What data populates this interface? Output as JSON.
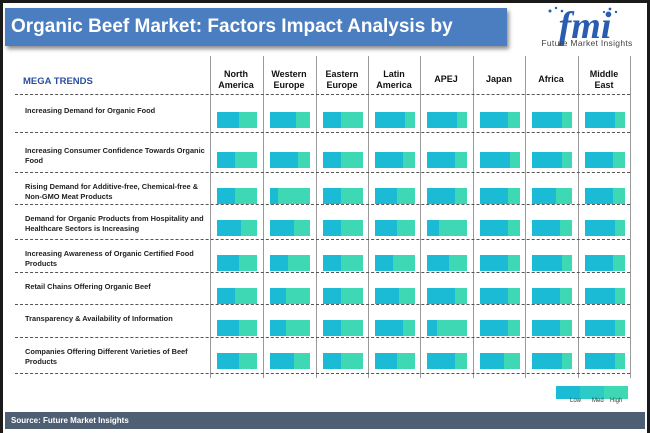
{
  "title": "Organic Beef Market: Factors Impact Analysis by Region",
  "logo": {
    "letters": "fmi",
    "name": "Future Market Insights"
  },
  "table": {
    "header_label": "MEGA TRENDS",
    "regions": [
      "North America",
      "Western Europe",
      "Eastern Europe",
      "Latin America",
      "APEJ",
      "Japan",
      "Africa",
      "Middle East"
    ]
  },
  "legend": {
    "low": "Low",
    "med": "Med",
    "high": "High"
  },
  "source": "Source: Future Market Insights",
  "colors": {
    "low": "#1bbbd6",
    "high": "#3ed9b4",
    "title_bg": "#4a7ec0",
    "source_bg": "#4f5f73"
  },
  "chart_data": {
    "type": "table",
    "title": "Organic Beef Market: Factors Impact Analysis by Region",
    "scale": [
      "Low",
      "Med",
      "High"
    ],
    "columns": [
      "North America",
      "Western Europe",
      "Eastern Europe",
      "Latin America",
      "APEJ",
      "Japan",
      "Africa",
      "Middle East"
    ],
    "rows": [
      {
        "trend": "Increasing Demand for Organic Food",
        "impact": [
          0.55,
          0.65,
          0.45,
          0.75,
          0.75,
          0.7,
          0.75,
          0.75
        ]
      },
      {
        "trend": "Increasing Consumer Confidence Towards Organic Food",
        "impact": [
          0.45,
          0.7,
          0.45,
          0.7,
          0.7,
          0.75,
          0.75,
          0.7
        ]
      },
      {
        "trend": "Rising Demand for Additive-free, Chemical-free & Non-GMO Meat Products",
        "impact": [
          0.45,
          0.2,
          0.45,
          0.55,
          0.7,
          0.7,
          0.6,
          0.7
        ]
      },
      {
        "trend": "Demand for Organic Products from Hospitality and Healthcare Sectors is Increasing",
        "impact": [
          0.6,
          0.6,
          0.45,
          0.55,
          0.3,
          0.7,
          0.7,
          0.75
        ]
      },
      {
        "trend": "Increasing Awareness of Organic Certified Food Products",
        "impact": [
          0.55,
          0.45,
          0.45,
          0.45,
          0.55,
          0.7,
          0.75,
          0.7
        ]
      },
      {
        "trend": "Retail Chains Offering Organic Beef",
        "impact": [
          0.45,
          0.4,
          0.45,
          0.6,
          0.7,
          0.7,
          0.7,
          0.75
        ]
      },
      {
        "trend": "Transparency & Availability of Information",
        "impact": [
          0.55,
          0.4,
          0.45,
          0.7,
          0.25,
          0.7,
          0.7,
          0.75
        ]
      },
      {
        "trend": "Companies Offering Different Varieties of Beef Products",
        "impact": [
          0.55,
          0.6,
          0.45,
          0.55,
          0.7,
          0.6,
          0.75,
          0.75
        ]
      }
    ]
  }
}
